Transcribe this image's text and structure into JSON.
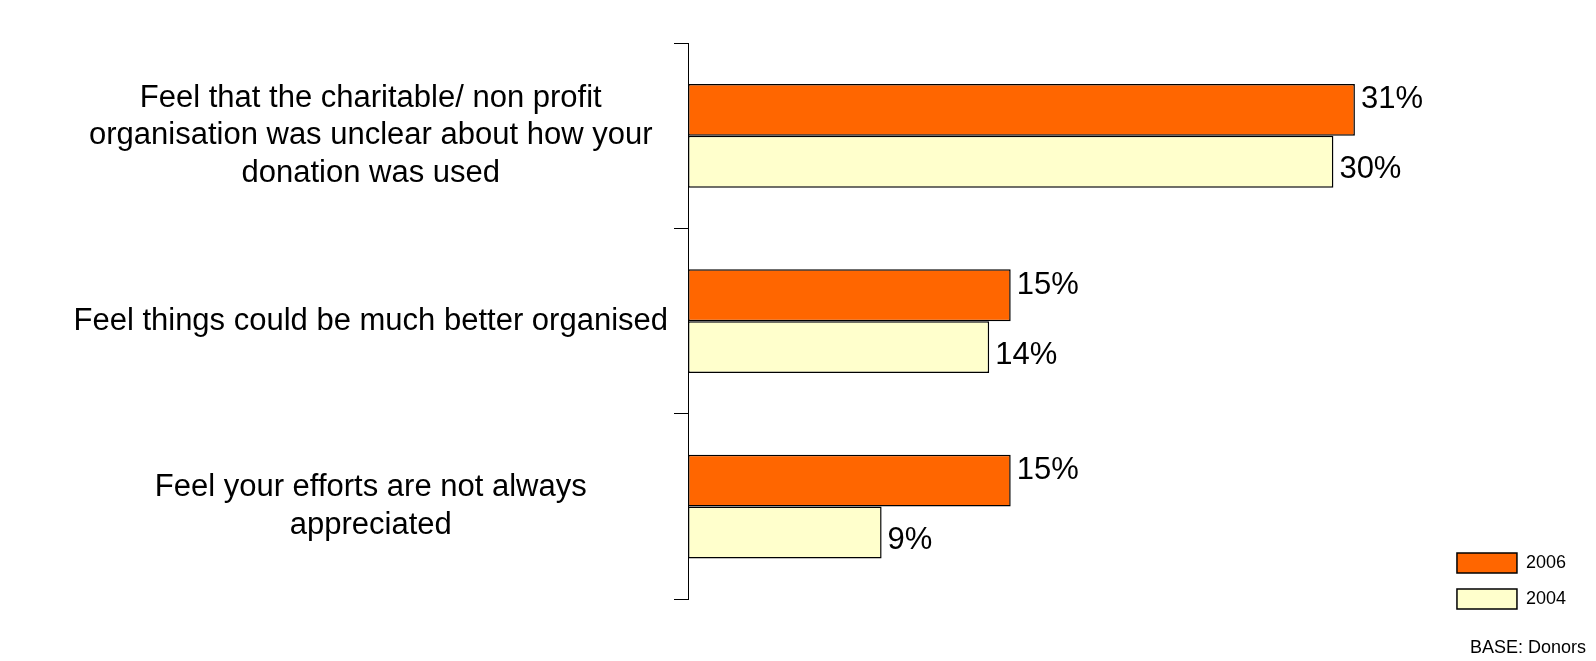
{
  "chart_data": {
    "type": "bar",
    "orientation": "horizontal",
    "categories": [
      "Feel that the charitable/ non profit organisation was unclear about how your donation was used",
      "Feel things could be much better organised",
      "Feel your efforts are not always appreciated"
    ],
    "series": [
      {
        "name": "2006",
        "color": "#ff6600",
        "values": [
          31,
          15,
          15
        ],
        "value_labels": [
          "31%",
          "15%",
          "15%"
        ]
      },
      {
        "name": "2004",
        "color": "#ffffcc",
        "values": [
          30,
          14,
          9
        ],
        "value_labels": [
          "30%",
          "14%",
          "9%"
        ]
      }
    ],
    "legend": "bottom right",
    "grid": false,
    "annotations": [
      "BASE: Donors"
    ]
  }
}
